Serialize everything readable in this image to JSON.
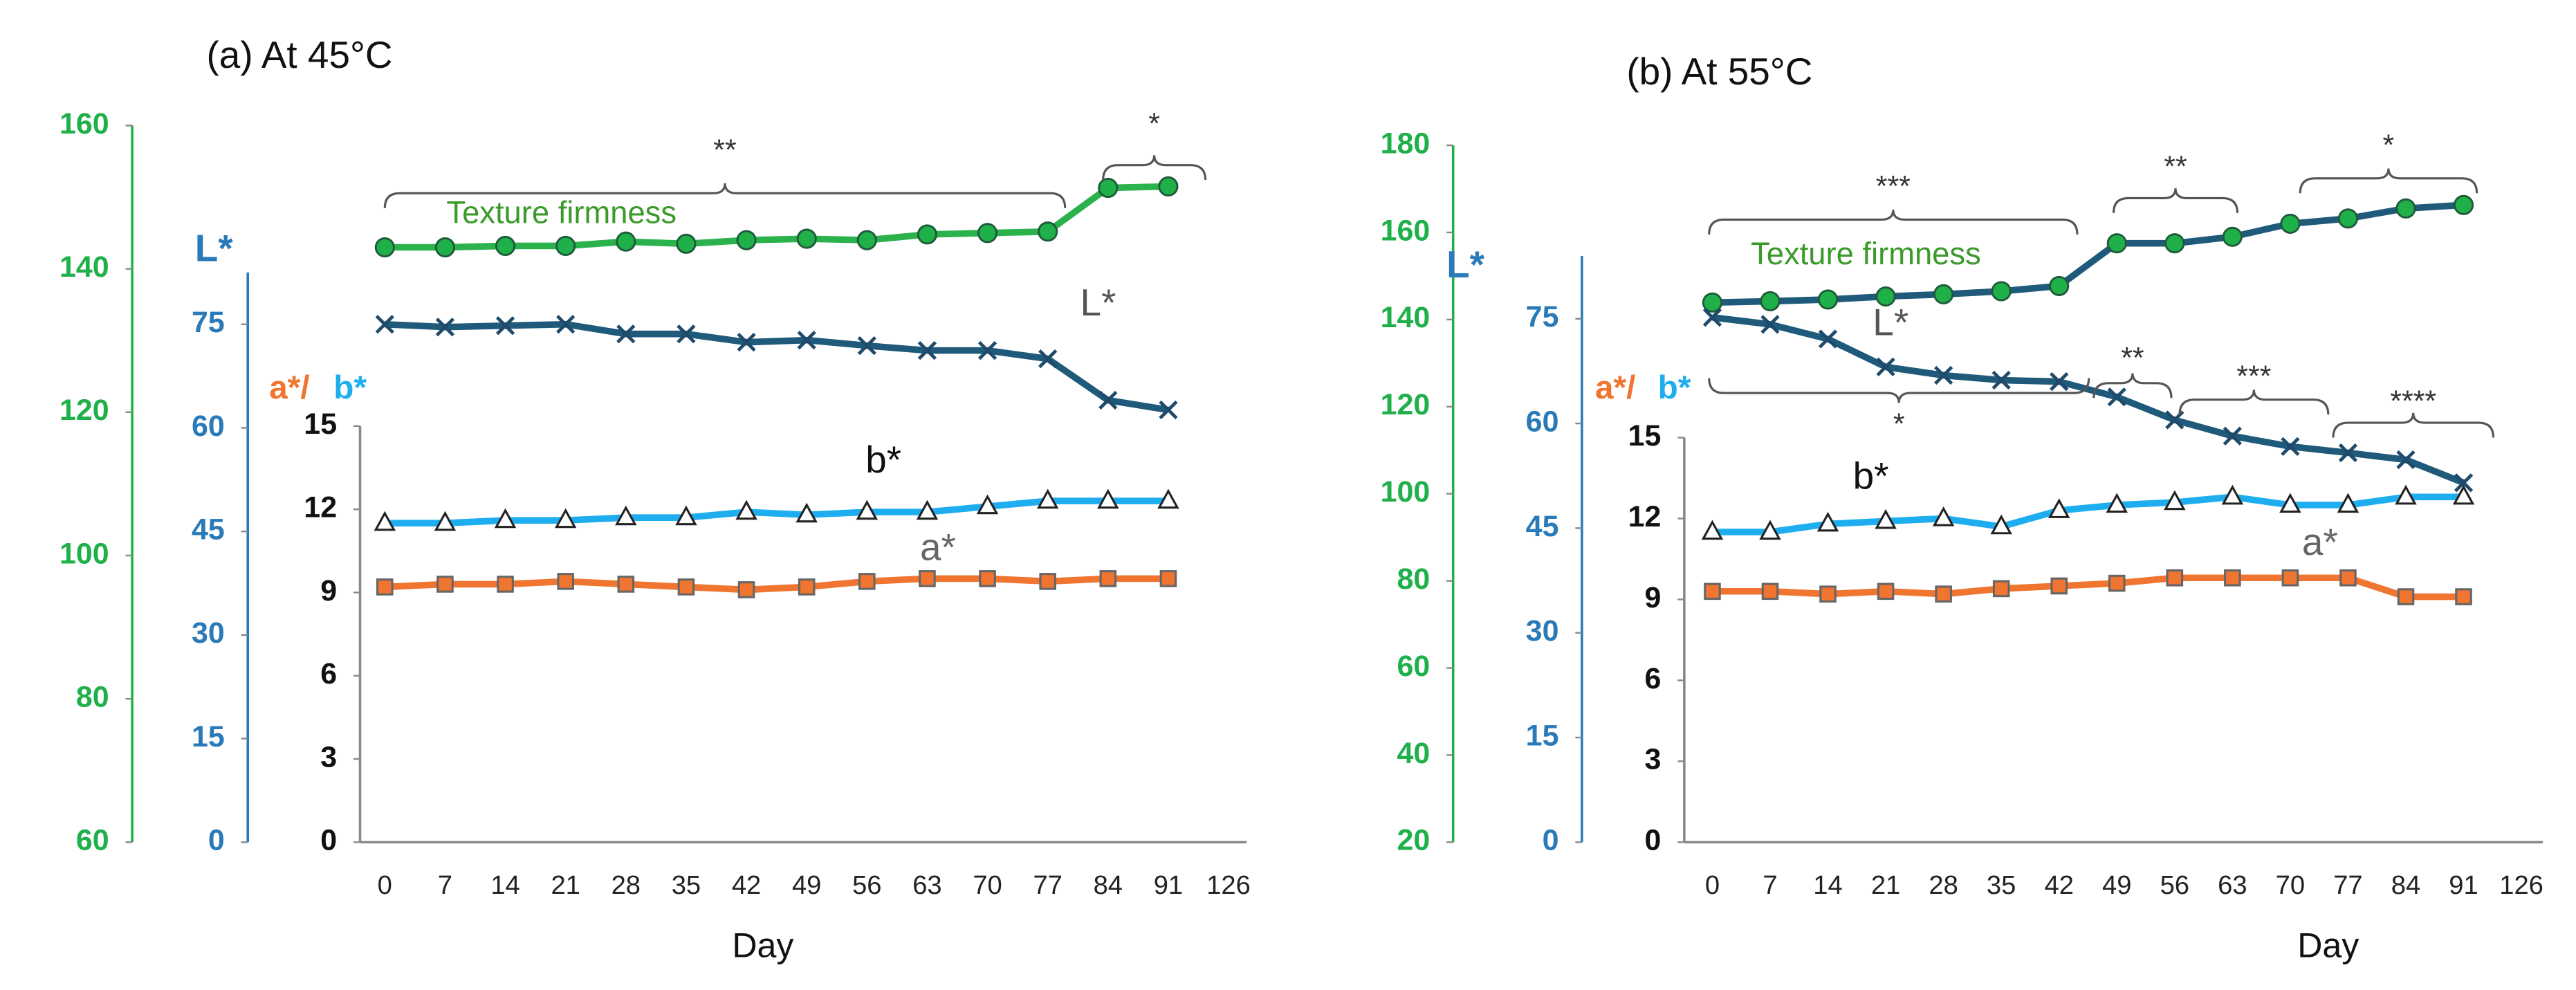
{
  "chart_data": [
    {
      "type": "line",
      "title": "(a)  At 45°C",
      "xlabel": "Day",
      "categories": [
        "0",
        "7",
        "14",
        "21",
        "28",
        "35",
        "42",
        "49",
        "56",
        "63",
        "70",
        "77",
        "84",
        "91",
        "126"
      ],
      "ylim": [
        60,
        160
      ],
      "yticks": [
        60,
        80,
        100,
        120,
        140,
        160
      ],
      "y2lim": [
        0,
        82.5
      ],
      "y2ticks": [
        0,
        15,
        30,
        45,
        60,
        75
      ],
      "y2label": "L*",
      "y3lim": [
        0,
        15
      ],
      "y3ticks": [
        0,
        3,
        6,
        9,
        12,
        15
      ],
      "y3label_a": "a*/",
      "y3label_b": "b*",
      "series": [
        {
          "name": "Texture firmness",
          "color": "#2bb24c",
          "axis": "y",
          "marker": "circle",
          "values": [
            143,
            143,
            143.2,
            143.2,
            143.8,
            143.5,
            144,
            144.2,
            144,
            144.8,
            145,
            145.2,
            151.3,
            151.5,
            null
          ]
        },
        {
          "name": "L*",
          "color": "#1f5a7a",
          "axis": "y2",
          "marker": "x",
          "values": [
            75,
            74.6,
            74.8,
            75,
            73.6,
            73.6,
            72.4,
            72.7,
            71.9,
            71.2,
            71.2,
            70,
            64,
            62.6,
            null
          ]
        },
        {
          "name": "b*",
          "color": "#1eaef0",
          "axis": "y3",
          "marker": "triangle",
          "values": [
            11.5,
            11.5,
            11.6,
            11.6,
            11.7,
            11.7,
            11.9,
            11.8,
            11.9,
            11.9,
            12.1,
            12.3,
            12.3,
            12.3,
            null
          ]
        },
        {
          "name": "a*",
          "color": "#f07530",
          "axis": "y3",
          "marker": "square",
          "values": [
            9.2,
            9.3,
            9.3,
            9.4,
            9.3,
            9.2,
            9.1,
            9.2,
            9.4,
            9.5,
            9.5,
            9.4,
            9.5,
            9.5,
            null
          ]
        }
      ],
      "annotations": [
        "**",
        "*"
      ]
    },
    {
      "type": "line",
      "title": "(b)  At 55°C",
      "xlabel": "Day",
      "categories": [
        "0",
        "7",
        "14",
        "21",
        "28",
        "35",
        "42",
        "49",
        "56",
        "63",
        "70",
        "77",
        "84",
        "91",
        "126"
      ],
      "ylim": [
        20,
        180
      ],
      "yticks": [
        20,
        40,
        60,
        80,
        100,
        120,
        140,
        160,
        180
      ],
      "y2lim": [
        0,
        84
      ],
      "y2ticks": [
        0,
        15,
        30,
        45,
        60,
        75
      ],
      "y2label": "L*",
      "y3lim": [
        0,
        15
      ],
      "y3ticks": [
        0,
        3,
        6,
        9,
        12,
        15
      ],
      "y3label_a": "a*/",
      "y3label_b": "b*",
      "series": [
        {
          "name": "Texture firmness",
          "color": "#1f5a7a",
          "axis": "y",
          "marker": "circle",
          "values": [
            143.9,
            144.2,
            144.6,
            145.3,
            145.8,
            146.5,
            147.7,
            157.5,
            157.5,
            159,
            162,
            163.2,
            165.5,
            166.3,
            null
          ]
        },
        {
          "name": "L*",
          "color": "#1f5a7a",
          "axis": "y2",
          "marker": "x",
          "values": [
            75.2,
            74.2,
            72.1,
            68.1,
            66.9,
            66.2,
            66,
            63.8,
            60.5,
            58.2,
            56.7,
            55.8,
            54.8,
            51.5,
            null
          ]
        },
        {
          "name": "b*",
          "color": "#1eaef0",
          "axis": "y3",
          "marker": "triangle",
          "values": [
            11.5,
            11.5,
            11.8,
            11.9,
            12,
            11.7,
            12.3,
            12.5,
            12.6,
            12.8,
            12.5,
            12.5,
            12.8,
            12.8,
            null
          ]
        },
        {
          "name": "a*",
          "color": "#f07530",
          "axis": "y3",
          "marker": "square",
          "values": [
            9.3,
            9.3,
            9.2,
            9.3,
            9.2,
            9.4,
            9.5,
            9.6,
            9.8,
            9.8,
            9.8,
            9.8,
            9.1,
            9.1,
            null
          ]
        }
      ],
      "annotations": [
        "***",
        "**",
        "*",
        "*",
        "**",
        "***",
        "****"
      ]
    }
  ]
}
